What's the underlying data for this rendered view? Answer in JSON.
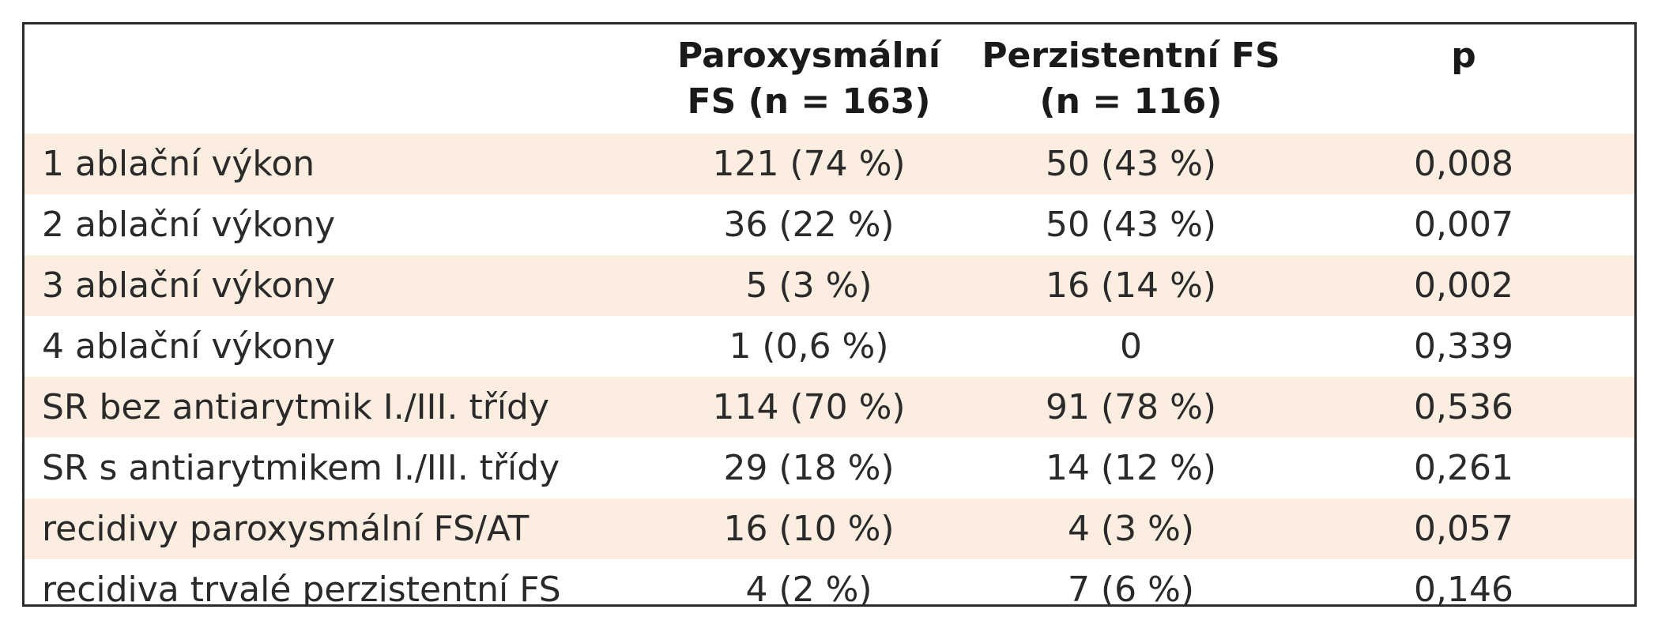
{
  "table": {
    "headers": [
      {
        "line1": "",
        "line2": ""
      },
      {
        "line1": "Paroxysmální",
        "line2": "FS (n = 163)"
      },
      {
        "line1": "Perzistentní FS",
        "line2": "(n = 116)"
      },
      {
        "line1": "p",
        "line2": ""
      }
    ],
    "rows": [
      {
        "label": "1 ablační výkon",
        "paroxysmalni": "121 (74 %)",
        "perzistentni": "50 (43 %)",
        "p": "0,008",
        "shaded": true
      },
      {
        "label": "2 ablační výkony",
        "paroxysmalni": "36 (22 %)",
        "perzistentni": "50 (43 %)",
        "p": "0,007",
        "shaded": false
      },
      {
        "label": "3 ablační výkony",
        "paroxysmalni": "5 (3 %)",
        "perzistentni": "16 (14 %)",
        "p": "0,002",
        "shaded": true
      },
      {
        "label": "4 ablační výkony",
        "paroxysmalni": "1 (0,6 %)",
        "perzistentni": "0",
        "p": "0,339",
        "shaded": false
      },
      {
        "label": "SR bez antiarytmik I./III. třídy",
        "paroxysmalni": "114 (70 %)",
        "perzistentni": "91 (78 %)",
        "p": "0,536",
        "shaded": true
      },
      {
        "label": "SR s antiarytmikem I./III. třídy",
        "paroxysmalni": "29 (18 %)",
        "perzistentni": "14 (12 %)",
        "p": "0,261",
        "shaded": false
      },
      {
        "label": "recidivy paroxysmální FS/AT",
        "paroxysmalni": "16 (10 %)",
        "perzistentni": "4 (3 %)",
        "p": "0,057",
        "shaded": true
      },
      {
        "label": "recidiva trvalé perzistentní FS",
        "paroxysmalni": "4 (2 %)",
        "perzistentni": "7 (6 %)",
        "p": "0,146",
        "shaded": false
      }
    ],
    "colors": {
      "shaded_row": "#fbeee0",
      "border": "#2b2b2b"
    }
  }
}
